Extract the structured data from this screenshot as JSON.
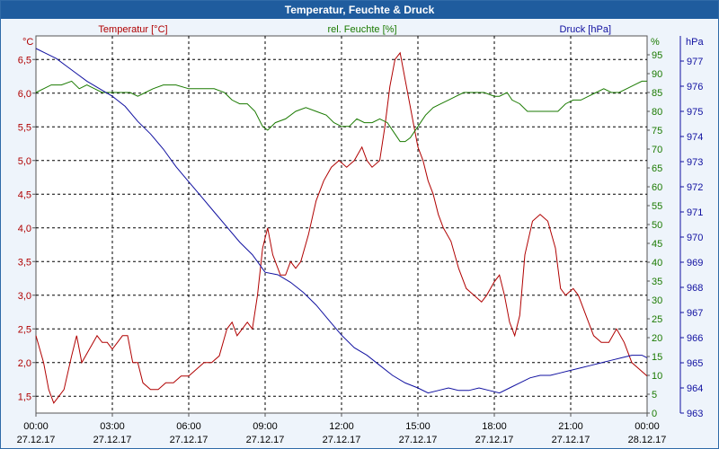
{
  "window": {
    "title": "Temperatur, Feuchte & Druck"
  },
  "chart_data": {
    "type": "line",
    "title": "Temperatur, Feuchte & Druck",
    "grid": true,
    "x_ticks": [
      {
        "time": "00:00",
        "date": "27.12.17"
      },
      {
        "time": "03:00",
        "date": "27.12.17"
      },
      {
        "time": "06:00",
        "date": "27.12.17"
      },
      {
        "time": "09:00",
        "date": "27.12.17"
      },
      {
        "time": "12:00",
        "date": "27.12.17"
      },
      {
        "time": "15:00",
        "date": "27.12.17"
      },
      {
        "time": "18:00",
        "date": "27.12.17"
      },
      {
        "time": "21:00",
        "date": "27.12.17"
      },
      {
        "time": "00:00",
        "date": "28.12.17"
      }
    ],
    "x_range_hours": [
      0,
      24
    ],
    "axes": {
      "temperature": {
        "unit": "°C",
        "color": "#b00000",
        "range": [
          1.25,
          6.85
        ],
        "ticks": [
          "1,5",
          "2,0",
          "2,5",
          "3,0",
          "3,5",
          "4,0",
          "4,5",
          "5,0",
          "5,5",
          "6,0",
          "6,5"
        ],
        "tick_values": [
          1.5,
          2.0,
          2.5,
          3.0,
          3.5,
          4.0,
          4.5,
          5.0,
          5.5,
          6.0,
          6.5
        ]
      },
      "humidity": {
        "unit": "%",
        "color": "#1a7a00",
        "range": [
          0,
          100
        ],
        "ticks": [
          "0",
          "5",
          "10",
          "15",
          "20",
          "25",
          "30",
          "35",
          "40",
          "45",
          "50",
          "55",
          "60",
          "65",
          "70",
          "75",
          "80",
          "85",
          "90",
          "95"
        ],
        "tick_values": [
          0,
          5,
          10,
          15,
          20,
          25,
          30,
          35,
          40,
          45,
          50,
          55,
          60,
          65,
          70,
          75,
          80,
          85,
          90,
          95
        ]
      },
      "pressure": {
        "unit": "hPa",
        "color": "#1010a0",
        "range": [
          963,
          978
        ],
        "ticks": [
          "963",
          "964",
          "965",
          "966",
          "967",
          "968",
          "969",
          "970",
          "971",
          "972",
          "973",
          "974",
          "975",
          "976",
          "977"
        ],
        "tick_values": [
          963,
          964,
          965,
          966,
          967,
          968,
          969,
          970,
          971,
          972,
          973,
          974,
          975,
          976,
          977
        ]
      }
    },
    "series": [
      {
        "name": "Temperatur [°C]",
        "axis": "temperature",
        "color": "#b00000",
        "points": [
          [
            0,
            2.4
          ],
          [
            0.3,
            2.0
          ],
          [
            0.5,
            1.6
          ],
          [
            0.7,
            1.4
          ],
          [
            0.9,
            1.5
          ],
          [
            1.1,
            1.6
          ],
          [
            1.4,
            2.1
          ],
          [
            1.6,
            2.4
          ],
          [
            1.8,
            2.0
          ],
          [
            2.1,
            2.2
          ],
          [
            2.4,
            2.4
          ],
          [
            2.6,
            2.3
          ],
          [
            2.8,
            2.3
          ],
          [
            3.0,
            2.2
          ],
          [
            3.2,
            2.3
          ],
          [
            3.4,
            2.4
          ],
          [
            3.6,
            2.4
          ],
          [
            3.8,
            2.0
          ],
          [
            4.0,
            2.0
          ],
          [
            4.2,
            1.7
          ],
          [
            4.5,
            1.6
          ],
          [
            4.8,
            1.6
          ],
          [
            5.1,
            1.7
          ],
          [
            5.4,
            1.7
          ],
          [
            5.7,
            1.8
          ],
          [
            6.0,
            1.8
          ],
          [
            6.3,
            1.9
          ],
          [
            6.6,
            2.0
          ],
          [
            6.9,
            2.0
          ],
          [
            7.2,
            2.1
          ],
          [
            7.5,
            2.5
          ],
          [
            7.7,
            2.6
          ],
          [
            7.9,
            2.4
          ],
          [
            8.1,
            2.5
          ],
          [
            8.3,
            2.6
          ],
          [
            8.5,
            2.5
          ],
          [
            8.7,
            3.0
          ],
          [
            8.9,
            3.7
          ],
          [
            9.1,
            4.0
          ],
          [
            9.3,
            3.6
          ],
          [
            9.6,
            3.3
          ],
          [
            9.8,
            3.3
          ],
          [
            10.0,
            3.5
          ],
          [
            10.2,
            3.4
          ],
          [
            10.4,
            3.5
          ],
          [
            10.7,
            3.9
          ],
          [
            11.0,
            4.4
          ],
          [
            11.3,
            4.7
          ],
          [
            11.6,
            4.9
          ],
          [
            11.9,
            5.0
          ],
          [
            12.2,
            4.9
          ],
          [
            12.5,
            5.0
          ],
          [
            12.8,
            5.2
          ],
          [
            13.0,
            5.0
          ],
          [
            13.2,
            4.9
          ],
          [
            13.5,
            5.0
          ],
          [
            13.7,
            5.5
          ],
          [
            13.9,
            6.1
          ],
          [
            14.1,
            6.5
          ],
          [
            14.3,
            6.6
          ],
          [
            14.5,
            6.2
          ],
          [
            14.8,
            5.6
          ],
          [
            15.0,
            5.2
          ],
          [
            15.2,
            5.0
          ],
          [
            15.4,
            4.7
          ],
          [
            15.6,
            4.5
          ],
          [
            15.8,
            4.2
          ],
          [
            16.0,
            4.0
          ],
          [
            16.3,
            3.8
          ],
          [
            16.6,
            3.4
          ],
          [
            16.9,
            3.1
          ],
          [
            17.2,
            3.0
          ],
          [
            17.5,
            2.9
          ],
          [
            17.7,
            3.0
          ],
          [
            18.0,
            3.2
          ],
          [
            18.2,
            3.3
          ],
          [
            18.4,
            3.0
          ],
          [
            18.6,
            2.6
          ],
          [
            18.8,
            2.4
          ],
          [
            19.0,
            2.7
          ],
          [
            19.2,
            3.6
          ],
          [
            19.5,
            4.1
          ],
          [
            19.8,
            4.2
          ],
          [
            20.1,
            4.1
          ],
          [
            20.4,
            3.7
          ],
          [
            20.6,
            3.1
          ],
          [
            20.8,
            3.0
          ],
          [
            21.1,
            3.1
          ],
          [
            21.3,
            3.0
          ],
          [
            21.6,
            2.7
          ],
          [
            21.9,
            2.4
          ],
          [
            22.2,
            2.3
          ],
          [
            22.5,
            2.3
          ],
          [
            22.8,
            2.5
          ],
          [
            23.1,
            2.3
          ],
          [
            23.4,
            2.0
          ],
          [
            23.7,
            1.9
          ],
          [
            24.0,
            1.8
          ]
        ]
      },
      {
        "name": "rel. Feuchte [%]",
        "axis": "humidity",
        "color": "#1a7a00",
        "points": [
          [
            0,
            85
          ],
          [
            0.3,
            86
          ],
          [
            0.6,
            87
          ],
          [
            1.0,
            87
          ],
          [
            1.4,
            88
          ],
          [
            1.7,
            86
          ],
          [
            2.0,
            87
          ],
          [
            2.3,
            86
          ],
          [
            2.6,
            85
          ],
          [
            3.0,
            85
          ],
          [
            3.4,
            85
          ],
          [
            3.7,
            85
          ],
          [
            4.0,
            84
          ],
          [
            4.3,
            85
          ],
          [
            4.6,
            86
          ],
          [
            5.0,
            87
          ],
          [
            5.5,
            87
          ],
          [
            6.0,
            86
          ],
          [
            6.5,
            86
          ],
          [
            7.0,
            86
          ],
          [
            7.4,
            85
          ],
          [
            7.7,
            83
          ],
          [
            8.0,
            82
          ],
          [
            8.3,
            82
          ],
          [
            8.6,
            80
          ],
          [
            8.9,
            76
          ],
          [
            9.1,
            75
          ],
          [
            9.4,
            77
          ],
          [
            9.8,
            78
          ],
          [
            10.2,
            80
          ],
          [
            10.6,
            81
          ],
          [
            11.0,
            80
          ],
          [
            11.4,
            79
          ],
          [
            11.7,
            77
          ],
          [
            12.0,
            76
          ],
          [
            12.3,
            76
          ],
          [
            12.6,
            78
          ],
          [
            12.9,
            77
          ],
          [
            13.2,
            77
          ],
          [
            13.5,
            78
          ],
          [
            13.8,
            77
          ],
          [
            14.1,
            74
          ],
          [
            14.3,
            72
          ],
          [
            14.5,
            72
          ],
          [
            14.7,
            73
          ],
          [
            15.0,
            76
          ],
          [
            15.3,
            79
          ],
          [
            15.6,
            81
          ],
          [
            15.9,
            82
          ],
          [
            16.2,
            83
          ],
          [
            16.5,
            84
          ],
          [
            16.8,
            85
          ],
          [
            17.2,
            85
          ],
          [
            17.6,
            85
          ],
          [
            18.0,
            84
          ],
          [
            18.2,
            84
          ],
          [
            18.5,
            85
          ],
          [
            18.7,
            83
          ],
          [
            19.0,
            82
          ],
          [
            19.3,
            80
          ],
          [
            19.6,
            80
          ],
          [
            19.9,
            80
          ],
          [
            20.2,
            80
          ],
          [
            20.5,
            80
          ],
          [
            20.8,
            82
          ],
          [
            21.1,
            83
          ],
          [
            21.4,
            83
          ],
          [
            21.7,
            84
          ],
          [
            22.0,
            85
          ],
          [
            22.3,
            86
          ],
          [
            22.6,
            85
          ],
          [
            22.9,
            85
          ],
          [
            23.2,
            86
          ],
          [
            23.5,
            87
          ],
          [
            23.8,
            88
          ],
          [
            24.0,
            88
          ]
        ]
      },
      {
        "name": "Druck [hPa]",
        "axis": "pressure",
        "color": "#1010a0",
        "points": [
          [
            0,
            977.5
          ],
          [
            0.4,
            977.3
          ],
          [
            0.8,
            977.1
          ],
          [
            1.2,
            976.8
          ],
          [
            1.6,
            976.5
          ],
          [
            2.0,
            976.2
          ],
          [
            2.5,
            975.9
          ],
          [
            3.0,
            975.6
          ],
          [
            3.5,
            975.2
          ],
          [
            4.0,
            974.6
          ],
          [
            4.5,
            974.1
          ],
          [
            5.0,
            973.5
          ],
          [
            5.5,
            972.8
          ],
          [
            6.0,
            972.2
          ],
          [
            6.5,
            971.6
          ],
          [
            7.0,
            971.0
          ],
          [
            7.5,
            970.4
          ],
          [
            8.0,
            969.8
          ],
          [
            8.5,
            969.3
          ],
          [
            9.0,
            968.6
          ],
          [
            9.5,
            968.5
          ],
          [
            10.0,
            968.2
          ],
          [
            10.5,
            967.8
          ],
          [
            11.0,
            967.3
          ],
          [
            11.5,
            966.7
          ],
          [
            12.0,
            966.1
          ],
          [
            12.5,
            965.6
          ],
          [
            13.0,
            965.3
          ],
          [
            13.5,
            964.9
          ],
          [
            14.0,
            964.5
          ],
          [
            14.5,
            964.2
          ],
          [
            15.0,
            964.0
          ],
          [
            15.4,
            963.8
          ],
          [
            15.8,
            963.9
          ],
          [
            16.2,
            964.0
          ],
          [
            16.6,
            963.9
          ],
          [
            17.0,
            963.9
          ],
          [
            17.4,
            964.0
          ],
          [
            17.8,
            963.9
          ],
          [
            18.2,
            963.8
          ],
          [
            18.6,
            964.0
          ],
          [
            19.0,
            964.2
          ],
          [
            19.4,
            964.4
          ],
          [
            19.8,
            964.5
          ],
          [
            20.2,
            964.5
          ],
          [
            20.6,
            964.6
          ],
          [
            21.0,
            964.7
          ],
          [
            21.4,
            964.8
          ],
          [
            21.8,
            964.9
          ],
          [
            22.2,
            965.0
          ],
          [
            22.6,
            965.1
          ],
          [
            23.0,
            965.2
          ],
          [
            23.4,
            965.3
          ],
          [
            23.8,
            965.3
          ],
          [
            24.0,
            965.2
          ]
        ]
      }
    ],
    "axis_labels": {
      "temperature": "Temperatur [°C]",
      "humidity": "rel. Feuchte [%]",
      "pressure": "Druck [hPa]"
    }
  }
}
